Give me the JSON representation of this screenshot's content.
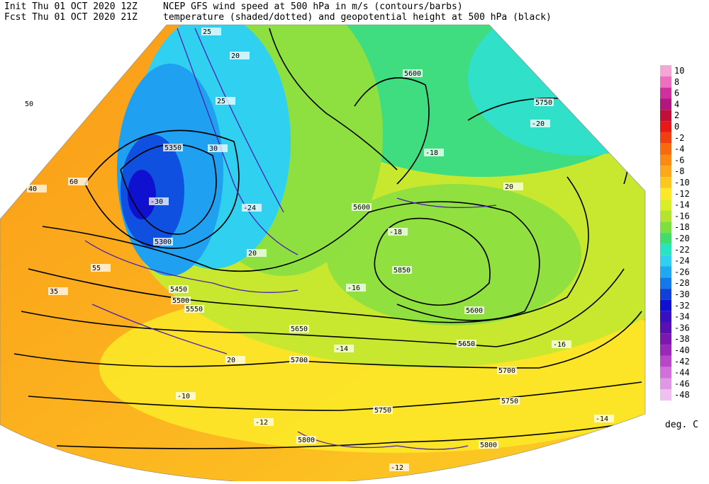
{
  "header": {
    "init_line": "Init  Thu 01 OCT 2020 12Z",
    "fcst_line": "Fcst Thu 01 OCT 2020 21Z",
    "title_line1": "NCEP GFS wind speed at 500 hPa in m/s (contours/barbs)",
    "title_line2": "temperature (shaded/dotted) and geopotential height at 500 hPa (black)"
  },
  "colorbar": {
    "unit": "deg. C",
    "levels": [
      {
        "value": 10,
        "color": "#f4a6d7"
      },
      {
        "value": 8,
        "color": "#ee6fc0"
      },
      {
        "value": 6,
        "color": "#d0309e"
      },
      {
        "value": 4,
        "color": "#b01880"
      },
      {
        "value": 2,
        "color": "#c0103a"
      },
      {
        "value": 0,
        "color": "#e81818"
      },
      {
        "value": -2,
        "color": "#f04010"
      },
      {
        "value": -4,
        "color": "#f86a10"
      },
      {
        "value": -6,
        "color": "#fa8a14"
      },
      {
        "value": -8,
        "color": "#fca818"
      },
      {
        "value": -10,
        "color": "#fcc820"
      },
      {
        "value": -12,
        "color": "#fce828"
      },
      {
        "value": -14,
        "color": "#d8ee28"
      },
      {
        "value": -16,
        "color": "#b4e430"
      },
      {
        "value": -18,
        "color": "#7ee040"
      },
      {
        "value": -20,
        "color": "#40dc70"
      },
      {
        "value": -22,
        "color": "#28e4c0"
      },
      {
        "value": -24,
        "color": "#30d0f0"
      },
      {
        "value": -26,
        "color": "#20a8f0"
      },
      {
        "value": -28,
        "color": "#1478e8"
      },
      {
        "value": -30,
        "color": "#1040d8"
      },
      {
        "value": -32,
        "color": "#1010d0"
      },
      {
        "value": -34,
        "color": "#3810c0"
      },
      {
        "value": -36,
        "color": "#5a10b0"
      },
      {
        "value": -38,
        "color": "#7a18b0"
      },
      {
        "value": -40,
        "color": "#9a28b8"
      },
      {
        "value": -42,
        "color": "#b848c8"
      },
      {
        "value": -44,
        "color": "#d070d8"
      },
      {
        "value": -46,
        "color": "#e098e4"
      },
      {
        "value": -48,
        "color": "#f0c0f0"
      }
    ]
  },
  "map_labels": [
    "5350",
    "5300",
    "5450",
    "5500",
    "5550",
    "5600",
    "5650",
    "5700",
    "5750",
    "5800",
    "5850",
    "5600",
    "5650",
    "5700",
    "5750",
    "5750",
    "5800",
    "5600",
    "25",
    "20",
    "25",
    "30",
    "35",
    "40",
    "50",
    "55",
    "60",
    "20",
    "20",
    "20",
    "-30",
    "-24",
    "-18",
    "-16",
    "-12",
    "-10",
    "-14",
    "-20",
    "-18",
    "-16",
    "-14",
    "-12"
  ]
}
